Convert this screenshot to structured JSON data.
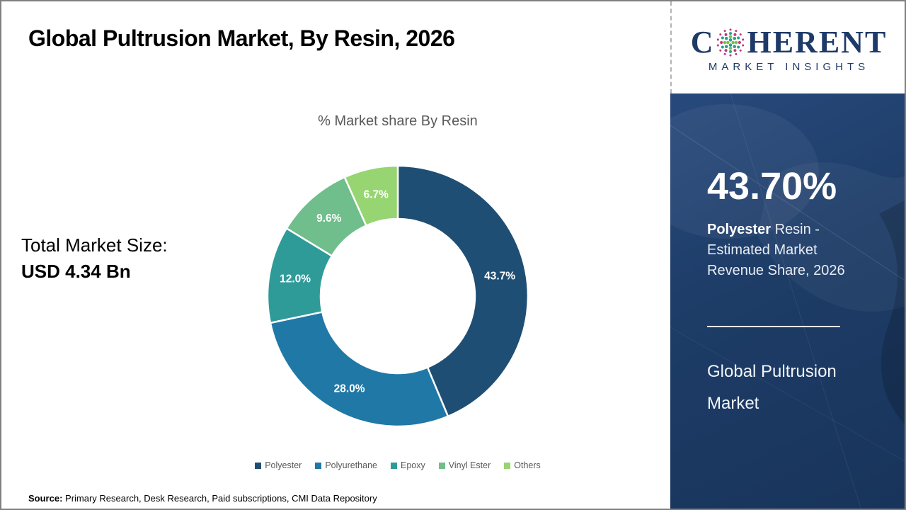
{
  "page": {
    "title": "Global Pultrusion Market, By Resin, 2026",
    "source_label": "Source:",
    "source_text": " Primary Research, Desk Research, Paid subscriptions, CMI Data Repository"
  },
  "logo": {
    "prefix": "C",
    "suffix": "HERENT",
    "subtitle": "MARKET INSIGHTS",
    "text_color": "#1e3a68",
    "globe_colors": [
      "#c03a7d",
      "#2a9d8f",
      "#7ac143"
    ]
  },
  "left_panel": {
    "market_size_label": "Total Market Size:",
    "market_size_value": "USD 4.34 Bn"
  },
  "chart_data": {
    "type": "pie",
    "donut": true,
    "title": "% Market share By Resin",
    "categories": [
      "Polyester",
      "Polyurethane",
      "Epoxy",
      "Vinyl Ester",
      "Others"
    ],
    "values": [
      43.7,
      28.0,
      12.0,
      9.6,
      6.7
    ],
    "labels": [
      "43.7%",
      "28.0%",
      "12.0%",
      "9.6%",
      "6.7%"
    ],
    "colors": [
      "#1F4E74",
      "#2078A6",
      "#2E9B99",
      "#6FBE8B",
      "#96D571"
    ],
    "label_color": "#ffffff",
    "legend_position": "bottom",
    "start_angle_deg": -90,
    "direction": "clockwise"
  },
  "sidebar": {
    "stat_value": "43.70%",
    "stat_highlight": "Polyester",
    "stat_rest": " Resin - Estimated Market Revenue Share, 2026",
    "panel_title": "Global Pultrusion Market",
    "background_color": "#1d3c66"
  }
}
